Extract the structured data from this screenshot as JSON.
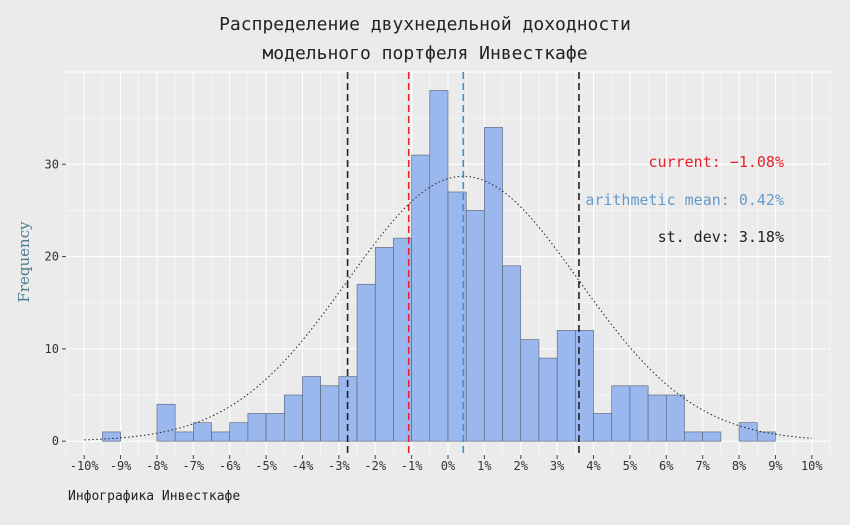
{
  "title_line1": "Распределение двухнедельной доходности",
  "title_line2": "модельного портфеля Инвесткафе",
  "caption": "Инфографика Инвесткафе",
  "chart_data": {
    "type": "bar",
    "subtype": "histogram",
    "ylabel": "Frequency",
    "xlabel": "",
    "xlim": [
      -10.5,
      10.5
    ],
    "ylim": [
      -1.5,
      40
    ],
    "x_ticks": [
      -10,
      -9,
      -8,
      -7,
      -6,
      -5,
      -4,
      -3,
      -2,
      -1,
      0,
      1,
      2,
      3,
      4,
      5,
      6,
      7,
      8,
      9,
      10
    ],
    "x_tick_labels": [
      "-10%",
      "-9%",
      "-8%",
      "-7%",
      "-6%",
      "-5%",
      "-4%",
      "-3%",
      "-2%",
      "-1%",
      "0%",
      "1%",
      "2%",
      "3%",
      "4%",
      "5%",
      "6%",
      "7%",
      "8%",
      "9%",
      "10%"
    ],
    "y_ticks": [
      0,
      10,
      20,
      30
    ],
    "bin_width": 0.5,
    "bins": [
      {
        "start": -9.5,
        "count": 1
      },
      {
        "start": -8.0,
        "count": 4
      },
      {
        "start": -7.5,
        "count": 1
      },
      {
        "start": -7.0,
        "count": 2
      },
      {
        "start": -6.5,
        "count": 1
      },
      {
        "start": -6.0,
        "count": 2
      },
      {
        "start": -5.5,
        "count": 3
      },
      {
        "start": -5.0,
        "count": 3
      },
      {
        "start": -4.5,
        "count": 5
      },
      {
        "start": -4.0,
        "count": 7
      },
      {
        "start": -3.5,
        "count": 6
      },
      {
        "start": -3.0,
        "count": 7
      },
      {
        "start": -2.5,
        "count": 17
      },
      {
        "start": -2.0,
        "count": 21
      },
      {
        "start": -1.5,
        "count": 22
      },
      {
        "start": -1.0,
        "count": 31
      },
      {
        "start": -0.5,
        "count": 38
      },
      {
        "start": 0.0,
        "count": 27
      },
      {
        "start": 0.5,
        "count": 25
      },
      {
        "start": 1.0,
        "count": 34
      },
      {
        "start": 1.5,
        "count": 19
      },
      {
        "start": 2.0,
        "count": 11
      },
      {
        "start": 2.5,
        "count": 9
      },
      {
        "start": 3.0,
        "count": 12
      },
      {
        "start": 3.5,
        "count": 12
      },
      {
        "start": 4.0,
        "count": 3
      },
      {
        "start": 4.5,
        "count": 6
      },
      {
        "start": 5.0,
        "count": 6
      },
      {
        "start": 5.5,
        "count": 5
      },
      {
        "start": 6.0,
        "count": 5
      },
      {
        "start": 6.5,
        "count": 1
      },
      {
        "start": 7.0,
        "count": 1
      },
      {
        "start": 8.0,
        "count": 2
      },
      {
        "start": 8.5,
        "count": 1
      }
    ],
    "normal_curve": {
      "mean": 0.42,
      "sd": 3.18,
      "x_range": [
        -10,
        10
      ],
      "peak": 28.7
    },
    "vlines": [
      {
        "x": -1.08,
        "color": "#e8222a"
      },
      {
        "x": 0.42,
        "color": "#3a93cc"
      },
      {
        "x": -2.76,
        "color": "#222222"
      },
      {
        "x": 3.6,
        "color": "#222222"
      }
    ],
    "annotations": [
      {
        "text": "current: −1.08%",
        "color": "#e8222a"
      },
      {
        "text": "arithmetic mean: 0.42%",
        "color": "#6699cc"
      },
      {
        "text": "st. dev: 3.18%",
        "color": "#222222"
      }
    ],
    "bar_fill": "#9bb8ee",
    "bar_stroke": "#556070",
    "grid": true
  }
}
